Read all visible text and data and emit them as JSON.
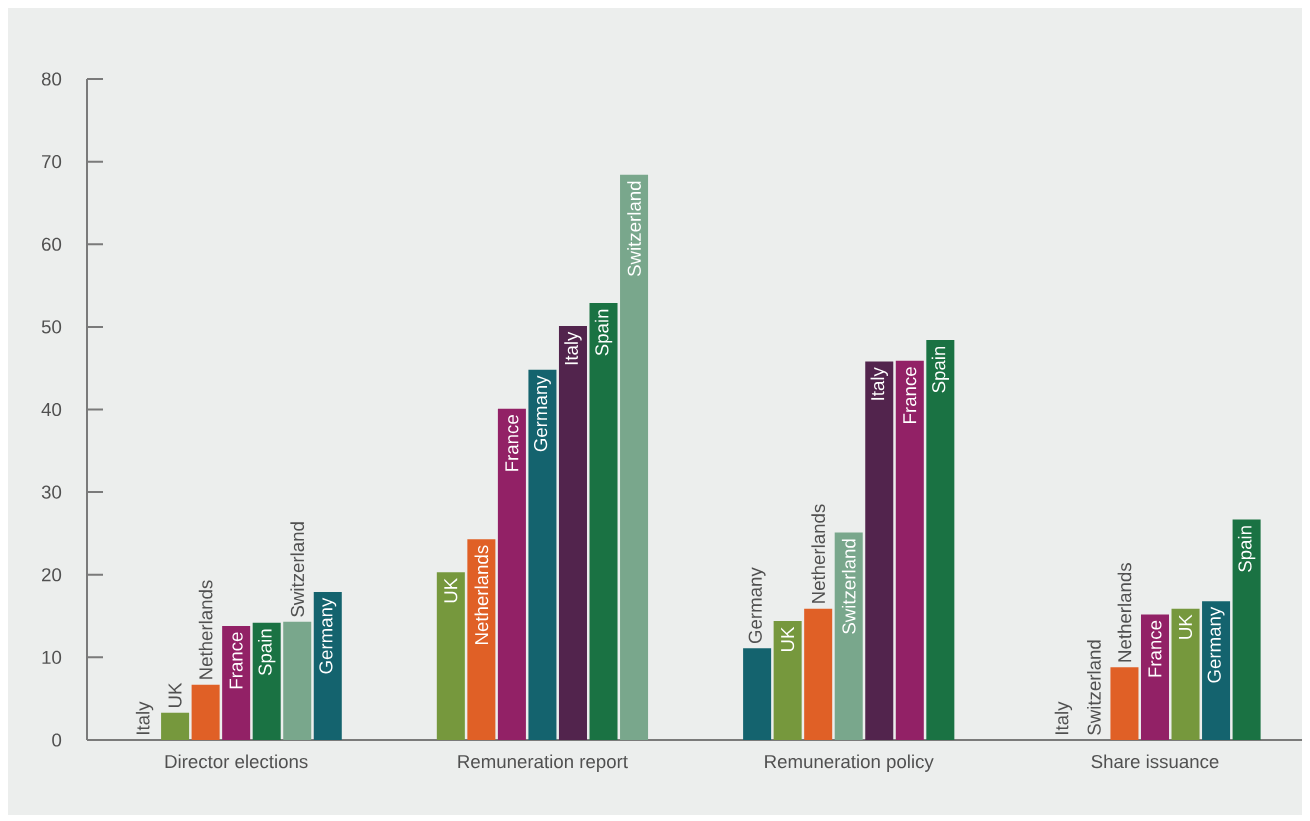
{
  "chart_data": {
    "type": "bar",
    "categories": [
      "Director elections",
      "Remuneration report",
      "Remuneration policy",
      "Share issuance"
    ],
    "series": [
      {
        "name": "Italy",
        "color": "#52244d",
        "values": [
          0,
          50.1,
          45.8,
          0
        ]
      },
      {
        "name": "UK",
        "color": "#76983d",
        "values": [
          3.3,
          20.3,
          14.4,
          15.9
        ]
      },
      {
        "name": "Netherlands",
        "color": "#e06026",
        "values": [
          6.7,
          24.3,
          15.9,
          8.8
        ]
      },
      {
        "name": "France",
        "color": "#922166",
        "values": [
          13.8,
          40.1,
          45.9,
          15.2
        ]
      },
      {
        "name": "Spain",
        "color": "#1a7243",
        "values": [
          14.2,
          52.9,
          48.4,
          26.7
        ]
      },
      {
        "name": "Switzerland",
        "color": "#79a78c",
        "values": [
          14.3,
          68.4,
          25.1,
          0
        ]
      },
      {
        "name": "Germany",
        "color": "#14636e",
        "values": [
          17.9,
          44.8,
          11.1,
          16.8
        ]
      }
    ],
    "ylim": [
      0,
      80
    ],
    "yticks": [
      0,
      10,
      20,
      30,
      40,
      50,
      60,
      70,
      80
    ]
  }
}
